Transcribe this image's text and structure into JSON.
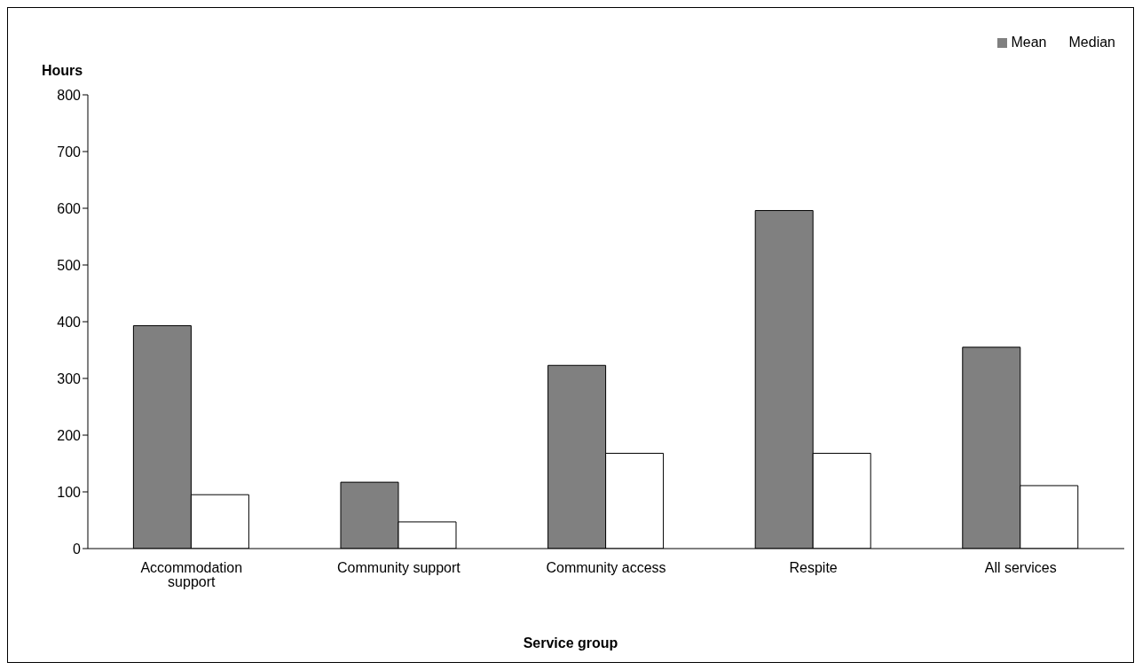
{
  "chart_data": {
    "type": "bar",
    "ylabel": "Hours",
    "xlabel": "Service group",
    "categories": [
      "Accommodation support",
      "Community support",
      "Community access",
      "Respite",
      "All services"
    ],
    "series": [
      {
        "name": "Mean",
        "color": "#808080",
        "values": [
          393,
          117,
          323,
          596,
          355
        ]
      },
      {
        "name": "Median",
        "color": "#ffffff",
        "values": [
          95,
          47,
          168,
          168,
          111
        ]
      }
    ],
    "ylim": [
      0,
      800
    ],
    "yticks": [
      0,
      100,
      200,
      300,
      400,
      500,
      600,
      700,
      800
    ],
    "grid": false,
    "legend": "top right"
  }
}
